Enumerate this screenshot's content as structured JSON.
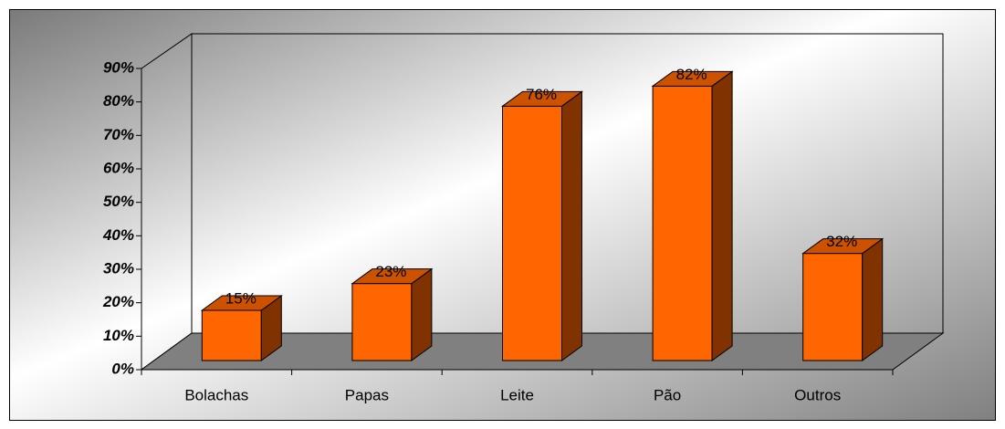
{
  "chart_data": {
    "type": "bar3d",
    "categories": [
      "Bolachas",
      "Papas",
      "Leite",
      "Pão",
      "Outros"
    ],
    "values": [
      15,
      23,
      76,
      82,
      32
    ],
    "value_labels": [
      "15%",
      "23%",
      "76%",
      "82%",
      "32%"
    ],
    "color": "#ff6600",
    "ylim": [
      0,
      90
    ],
    "yticks": [
      {
        "value": 0,
        "label": "0%"
      },
      {
        "value": 10,
        "label": "10%"
      },
      {
        "value": 20,
        "label": "20%"
      },
      {
        "value": 30,
        "label": "30%"
      },
      {
        "value": 40,
        "label": "40%"
      },
      {
        "value": 50,
        "label": "50%"
      },
      {
        "value": 60,
        "label": "60%"
      },
      {
        "value": 70,
        "label": "70%"
      },
      {
        "value": 80,
        "label": "80%"
      },
      {
        "value": 90,
        "label": "90%"
      }
    ],
    "grid": false
  }
}
